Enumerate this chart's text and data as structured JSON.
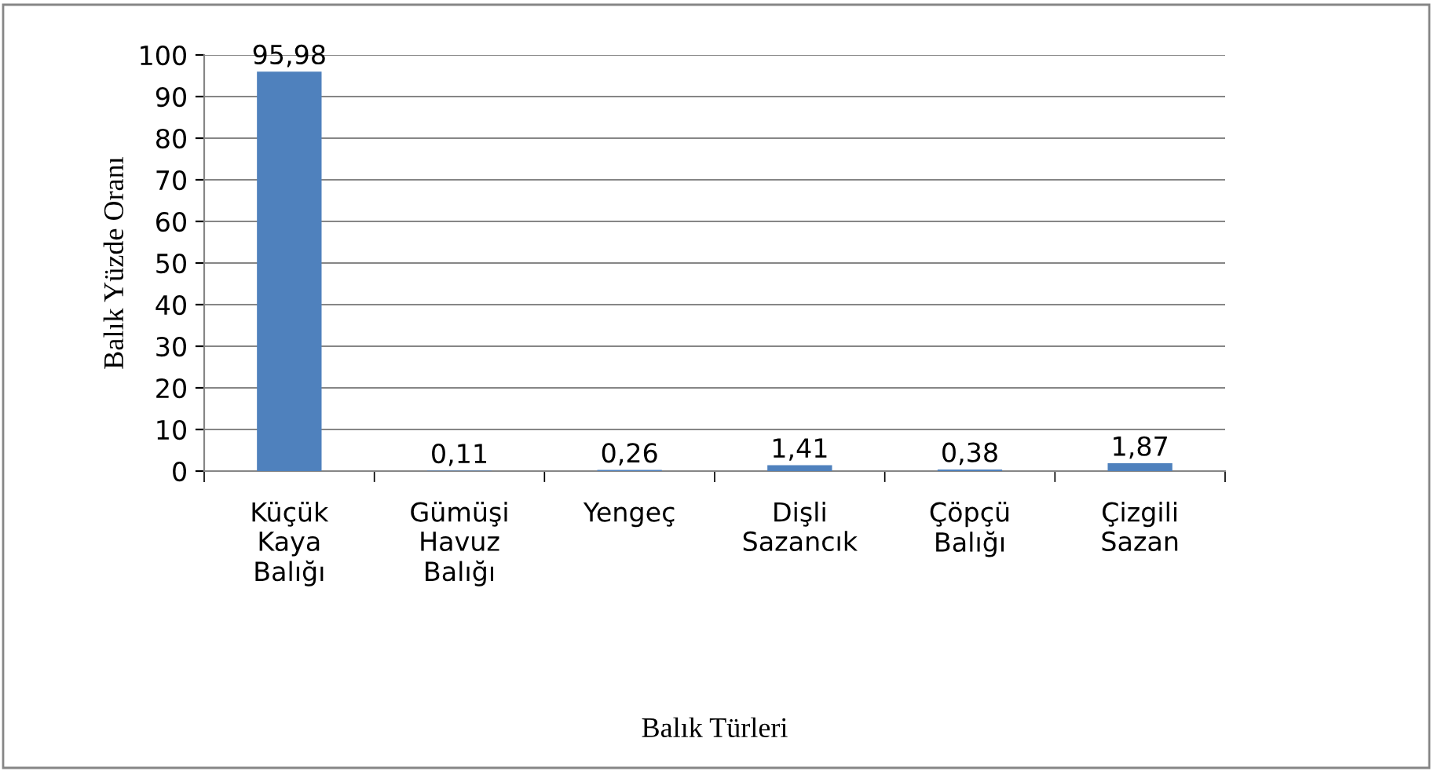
{
  "chart_data": {
    "type": "bar",
    "xlabel": "Balık Türleri",
    "ylabel": "Balık Yüzde Oranı",
    "categories": [
      "Küçük\nKaya\nBalığı",
      "Gümüşi\nHavuz\nBalığı",
      "Yengeç",
      "Dişli\nSazancık",
      "Çöpçü\nBalığı",
      "Çizgili\nSazan"
    ],
    "values": [
      95.98,
      0.11,
      0.26,
      1.41,
      0.38,
      1.87
    ],
    "value_labels": [
      "95,98",
      "0,11",
      "0,26",
      "1,41",
      "0,38",
      "1,87"
    ],
    "color": "#4f81bd",
    "ylim": [
      0,
      100
    ],
    "yticks": [
      0,
      10,
      20,
      30,
      40,
      50,
      60,
      70,
      80,
      90,
      100
    ],
    "grid": "y",
    "legend": false
  }
}
